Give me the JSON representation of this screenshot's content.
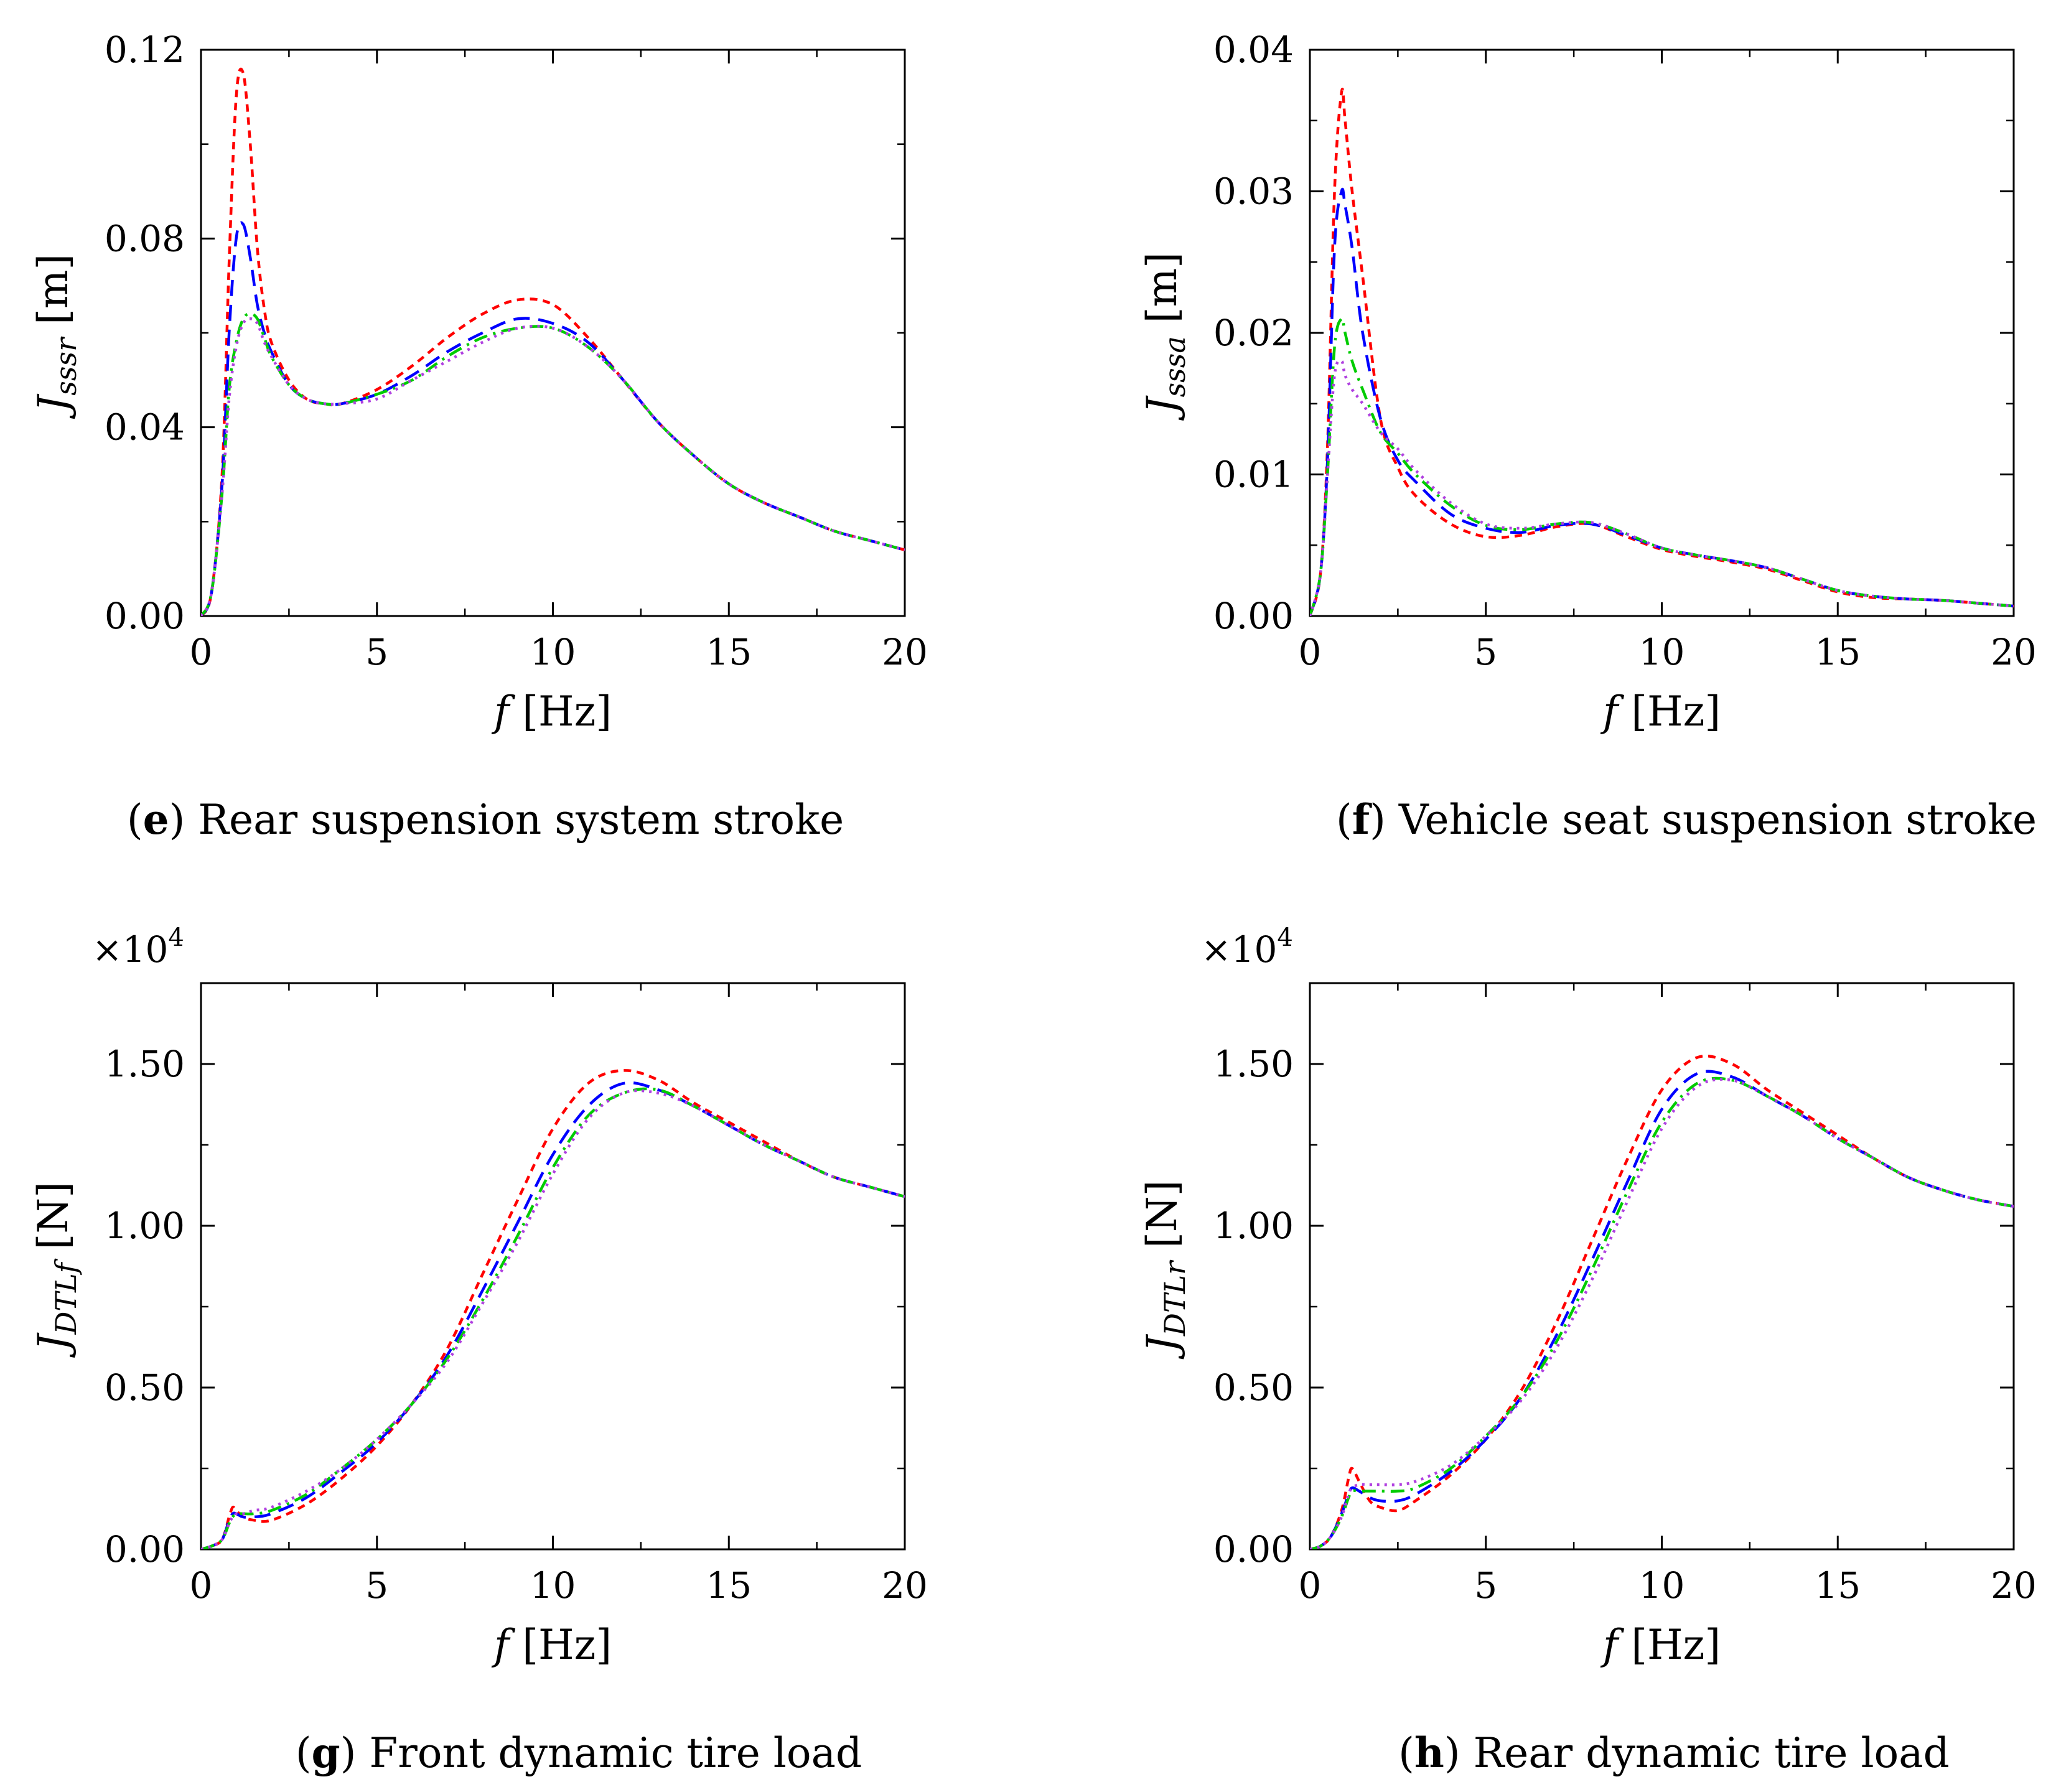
{
  "figure": {
    "subplots": [
      {
        "caption_letter": "e",
        "caption_text": "Rear suspension system stroke",
        "ylabel_main": "J",
        "ylabel_sub": "sssr",
        "ylabel_unit": "[m]",
        "xlabel_var": "f",
        "xlabel_unit": "[Hz]",
        "multiplier_base": "",
        "multiplier_exp": ""
      },
      {
        "caption_letter": "f",
        "caption_text": "Vehicle seat suspension stroke",
        "ylabel_main": "J",
        "ylabel_sub": "sssa",
        "ylabel_unit": "[m]",
        "xlabel_var": "f",
        "xlabel_unit": "[Hz]",
        "multiplier_base": "",
        "multiplier_exp": ""
      },
      {
        "caption_letter": "g",
        "caption_text": "Front dynamic tire load",
        "ylabel_main": "J",
        "ylabel_sub": "DTLf",
        "ylabel_unit": "[N]",
        "xlabel_var": "f",
        "xlabel_unit": "[Hz]",
        "multiplier_base": "×10",
        "multiplier_exp": "4"
      },
      {
        "caption_letter": "h",
        "caption_text": "Rear dynamic tire load",
        "ylabel_main": "J",
        "ylabel_sub": "DTLr",
        "ylabel_unit": "[N]",
        "xlabel_var": "f",
        "xlabel_unit": "[Hz]",
        "multiplier_base": "×10",
        "multiplier_exp": "4"
      }
    ]
  },
  "series_style": [
    {
      "name": "red short-dash",
      "color": "#ff0000",
      "dash": "short-dash"
    },
    {
      "name": "blue dash",
      "color": "#0000ff",
      "dash": "dash"
    },
    {
      "name": "green dash-dot",
      "color": "#00cc00",
      "dash": "dash-dot"
    },
    {
      "name": "magenta dot",
      "color": "#b040e0",
      "dash": "dot"
    }
  ],
  "chart_data": [
    {
      "type": "line",
      "title": "(e) Rear suspension system stroke",
      "xlabel": "f [Hz]",
      "ylabel": "J_sssr [m]",
      "xlim": [
        0,
        20
      ],
      "ylim": [
        0,
        0.12
      ],
      "xticks": [
        0,
        5,
        10,
        15,
        20
      ],
      "yticks": [
        0,
        0.04,
        0.08,
        0.12
      ],
      "xtick_labels": [
        "0",
        "5",
        "10",
        "15",
        "20"
      ],
      "ytick_labels": [
        "0.00",
        "0.04",
        "0.08",
        "0.12"
      ],
      "x": [
        0,
        0.3,
        0.6,
        0.8,
        1.0,
        1.2,
        1.4,
        1.6,
        1.8,
        2.0,
        2.5,
        3.0,
        3.5,
        4,
        5,
        6,
        7,
        8,
        9,
        10,
        11,
        12,
        13,
        14,
        15,
        16,
        17,
        18,
        19,
        20
      ],
      "series": [
        {
          "name": "red short-dash",
          "values": [
            0,
            0.005,
            0.03,
            0.075,
            0.11,
            0.115,
            0.1,
            0.078,
            0.065,
            0.058,
            0.05,
            0.046,
            0.045,
            0.045,
            0.048,
            0.053,
            0.059,
            0.064,
            0.067,
            0.066,
            0.059,
            0.05,
            0.041,
            0.034,
            0.028,
            0.024,
            0.021,
            0.018,
            0.016,
            0.014
          ]
        },
        {
          "name": "blue dash",
          "values": [
            0,
            0.005,
            0.028,
            0.06,
            0.08,
            0.083,
            0.076,
            0.066,
            0.06,
            0.056,
            0.049,
            0.046,
            0.045,
            0.045,
            0.047,
            0.051,
            0.056,
            0.06,
            0.063,
            0.062,
            0.058,
            0.05,
            0.041,
            0.034,
            0.028,
            0.024,
            0.021,
            0.018,
            0.016,
            0.014
          ]
        },
        {
          "name": "green dash-dot",
          "values": [
            0,
            0.005,
            0.026,
            0.048,
            0.058,
            0.063,
            0.064,
            0.063,
            0.059,
            0.055,
            0.049,
            0.046,
            0.045,
            0.045,
            0.047,
            0.05,
            0.055,
            0.059,
            0.061,
            0.061,
            0.057,
            0.05,
            0.041,
            0.034,
            0.028,
            0.024,
            0.021,
            0.018,
            0.016,
            0.014
          ]
        },
        {
          "name": "magenta dot",
          "values": [
            0,
            0.005,
            0.026,
            0.046,
            0.057,
            0.062,
            0.063,
            0.062,
            0.058,
            0.055,
            0.049,
            0.046,
            0.045,
            0.045,
            0.046,
            0.05,
            0.054,
            0.058,
            0.061,
            0.061,
            0.057,
            0.05,
            0.041,
            0.034,
            0.028,
            0.024,
            0.021,
            0.018,
            0.016,
            0.014
          ]
        }
      ]
    },
    {
      "type": "line",
      "title": "(f) Vehicle seat suspension stroke",
      "xlabel": "f [Hz]",
      "ylabel": "J_sssa [m]",
      "xlim": [
        0,
        20
      ],
      "ylim": [
        0,
        0.04
      ],
      "xticks": [
        0,
        5,
        10,
        15,
        20
      ],
      "yticks": [
        0,
        0.01,
        0.02,
        0.03,
        0.04
      ],
      "xtick_labels": [
        "0",
        "5",
        "10",
        "15",
        "20"
      ],
      "ytick_labels": [
        "0.00",
        "0.01",
        "0.02",
        "0.03",
        "0.04"
      ],
      "x": [
        0,
        0.3,
        0.5,
        0.7,
        0.9,
        1.0,
        1.2,
        1.5,
        2.0,
        2.5,
        3,
        4,
        5,
        6,
        7,
        8,
        9,
        10,
        11,
        12,
        13,
        14,
        15,
        16,
        17,
        18,
        19,
        20
      ],
      "series": [
        {
          "name": "red short-dash",
          "values": [
            0,
            0.003,
            0.012,
            0.03,
            0.037,
            0.035,
            0.03,
            0.024,
            0.014,
            0.0105,
            0.0085,
            0.0065,
            0.0056,
            0.0057,
            0.0063,
            0.0065,
            0.0056,
            0.0047,
            0.0042,
            0.0038,
            0.0033,
            0.0025,
            0.0017,
            0.0013,
            0.0012,
            0.0011,
            0.0009,
            0.0007
          ]
        },
        {
          "name": "blue dash",
          "values": [
            0,
            0.003,
            0.011,
            0.026,
            0.03,
            0.029,
            0.026,
            0.02,
            0.014,
            0.011,
            0.0095,
            0.0072,
            0.0062,
            0.0059,
            0.0064,
            0.0065,
            0.0057,
            0.0048,
            0.0043,
            0.0039,
            0.0034,
            0.0026,
            0.0018,
            0.0014,
            0.0012,
            0.0011,
            0.0009,
            0.0007
          ]
        },
        {
          "name": "green dash-dot",
          "values": [
            0,
            0.003,
            0.01,
            0.019,
            0.021,
            0.02,
            0.018,
            0.016,
            0.013,
            0.0115,
            0.01,
            0.0078,
            0.0064,
            0.0061,
            0.0065,
            0.0066,
            0.0058,
            0.0048,
            0.0043,
            0.0039,
            0.0034,
            0.0026,
            0.0018,
            0.0014,
            0.0012,
            0.0011,
            0.0009,
            0.0007
          ]
        },
        {
          "name": "magenta dot",
          "values": [
            0,
            0.003,
            0.01,
            0.017,
            0.018,
            0.017,
            0.016,
            0.015,
            0.013,
            0.0118,
            0.0103,
            0.008,
            0.0065,
            0.0062,
            0.0065,
            0.0066,
            0.0058,
            0.0048,
            0.0043,
            0.0039,
            0.0034,
            0.0026,
            0.0018,
            0.0014,
            0.0012,
            0.0011,
            0.0009,
            0.0007
          ]
        }
      ]
    },
    {
      "type": "line",
      "title": "(g) Front dynamic tire load",
      "xlabel": "f [Hz]",
      "ylabel": "J_DTLf [N]",
      "xlim": [
        0,
        20
      ],
      "ylim": [
        0,
        1.75
      ],
      "xticks": [
        0,
        5,
        10,
        15,
        20
      ],
      "yticks": [
        0,
        0.5,
        1.0,
        1.5
      ],
      "xtick_labels": [
        "0",
        "5",
        "10",
        "15",
        "20"
      ],
      "ytick_labels": [
        "0.00",
        "0.50",
        "1.00",
        "1.50"
      ],
      "x": [
        0,
        0.3,
        0.6,
        0.8,
        0.9,
        1.0,
        1.2,
        1.5,
        2,
        3,
        4,
        5,
        6,
        7,
        8,
        9,
        10,
        11,
        12,
        13,
        14,
        15,
        16,
        17,
        18,
        19,
        20
      ],
      "series": [
        {
          "name": "red short-dash",
          "values": [
            0,
            0.01,
            0.03,
            0.1,
            0.13,
            0.12,
            0.1,
            0.09,
            0.09,
            0.14,
            0.22,
            0.32,
            0.45,
            0.62,
            0.85,
            1.08,
            1.3,
            1.44,
            1.48,
            1.45,
            1.38,
            1.32,
            1.26,
            1.2,
            1.15,
            1.12,
            1.09
          ]
        },
        {
          "name": "blue dash",
          "values": [
            0,
            0.01,
            0.03,
            0.09,
            0.11,
            0.11,
            0.1,
            0.1,
            0.11,
            0.16,
            0.24,
            0.33,
            0.45,
            0.6,
            0.8,
            1.01,
            1.22,
            1.37,
            1.44,
            1.42,
            1.37,
            1.31,
            1.25,
            1.2,
            1.15,
            1.12,
            1.09
          ]
        },
        {
          "name": "green dash-dot",
          "values": [
            0,
            0.01,
            0.03,
            0.08,
            0.1,
            0.11,
            0.11,
            0.11,
            0.12,
            0.17,
            0.25,
            0.34,
            0.45,
            0.59,
            0.77,
            0.97,
            1.18,
            1.34,
            1.41,
            1.42,
            1.37,
            1.31,
            1.25,
            1.2,
            1.15,
            1.12,
            1.09
          ]
        },
        {
          "name": "magenta dot",
          "values": [
            0,
            0.01,
            0.03,
            0.08,
            0.1,
            0.11,
            0.11,
            0.12,
            0.13,
            0.18,
            0.25,
            0.34,
            0.45,
            0.58,
            0.76,
            0.95,
            1.16,
            1.33,
            1.41,
            1.41,
            1.37,
            1.31,
            1.25,
            1.2,
            1.15,
            1.12,
            1.09
          ]
        }
      ]
    },
    {
      "type": "line",
      "title": "(h) Rear dynamic tire load",
      "xlabel": "f [Hz]",
      "ylabel": "J_DTLr [N]",
      "xlim": [
        0,
        20
      ],
      "ylim": [
        0,
        1.75
      ],
      "xticks": [
        0,
        5,
        10,
        15,
        20
      ],
      "yticks": [
        0,
        0.5,
        1.0,
        1.5
      ],
      "xtick_labels": [
        "0",
        "5",
        "10",
        "15",
        "20"
      ],
      "ytick_labels": [
        "0.00",
        "0.50",
        "1.00",
        "1.50"
      ],
      "x": [
        0,
        0.3,
        0.6,
        0.9,
        1.1,
        1.2,
        1.4,
        1.7,
        2.0,
        2.5,
        3,
        4,
        5,
        6,
        7,
        8,
        9,
        10,
        11,
        12,
        13,
        14,
        15,
        16,
        17,
        18,
        19,
        20
      ],
      "series": [
        {
          "name": "red short-dash",
          "values": [
            0,
            0.01,
            0.04,
            0.12,
            0.22,
            0.25,
            0.21,
            0.15,
            0.13,
            0.12,
            0.15,
            0.23,
            0.34,
            0.49,
            0.7,
            0.95,
            1.2,
            1.42,
            1.52,
            1.5,
            1.42,
            1.35,
            1.28,
            1.21,
            1.15,
            1.11,
            1.08,
            1.06
          ]
        },
        {
          "name": "blue dash",
          "values": [
            0,
            0.01,
            0.04,
            0.11,
            0.17,
            0.19,
            0.18,
            0.16,
            0.15,
            0.15,
            0.17,
            0.24,
            0.34,
            0.47,
            0.66,
            0.89,
            1.13,
            1.36,
            1.47,
            1.46,
            1.4,
            1.34,
            1.27,
            1.21,
            1.15,
            1.11,
            1.08,
            1.06
          ]
        },
        {
          "name": "green dash-dot",
          "values": [
            0,
            0.01,
            0.04,
            0.1,
            0.16,
            0.18,
            0.18,
            0.18,
            0.18,
            0.18,
            0.19,
            0.25,
            0.35,
            0.47,
            0.64,
            0.86,
            1.1,
            1.32,
            1.44,
            1.45,
            1.4,
            1.34,
            1.27,
            1.21,
            1.15,
            1.11,
            1.08,
            1.06
          ]
        },
        {
          "name": "magenta dot",
          "values": [
            0,
            0.01,
            0.04,
            0.1,
            0.17,
            0.19,
            0.2,
            0.2,
            0.2,
            0.2,
            0.21,
            0.26,
            0.35,
            0.46,
            0.62,
            0.83,
            1.07,
            1.3,
            1.43,
            1.45,
            1.4,
            1.34,
            1.27,
            1.21,
            1.15,
            1.11,
            1.08,
            1.06
          ]
        }
      ]
    }
  ]
}
